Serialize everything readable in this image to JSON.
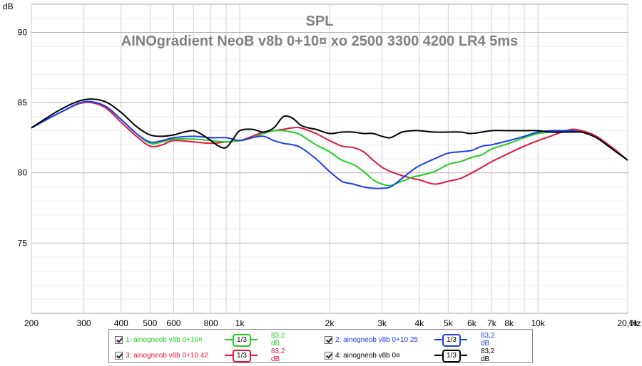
{
  "chart_data": {
    "type": "line",
    "title": "SPL",
    "subtitle": "AINOgradient NeoB v8b 0+10¤ xo 2500 3300 4200 LR4 5ms",
    "ylabel": "dB",
    "xlabel": "",
    "x_scale": "log",
    "xlim": [
      200,
      20000
    ],
    "ylim": [
      70,
      92
    ],
    "grid": true,
    "y_ticks": [
      75,
      80,
      85,
      90
    ],
    "y_tick_labels": [
      "75",
      "80",
      "85",
      "90"
    ],
    "x_ticks": [
      200,
      300,
      400,
      500,
      600,
      800,
      1000,
      2000,
      3000,
      4000,
      5000,
      6000,
      7000,
      8000,
      10000,
      20000
    ],
    "x_tick_labels": [
      "200",
      "300",
      "400",
      "500",
      "600",
      "800",
      "1k",
      "2k",
      "3k",
      "4k",
      "5k",
      "6k",
      "7k",
      "8k",
      "10k",
      "20,0k"
    ],
    "x_unit": "Hz",
    "legend_position": "bottom",
    "series": [
      {
        "name": "ainogneob v8b 0+10¤",
        "index_label": "1:",
        "color": "#22cc22",
        "smoothing": "1/3",
        "value_label": "83,2 dB",
        "x": [
          200,
          250,
          300,
          350,
          400,
          450,
          500,
          550,
          600,
          700,
          800,
          900,
          1000,
          1100,
          1200,
          1300,
          1400,
          1500,
          1600,
          1800,
          2000,
          2200,
          2400,
          2600,
          2800,
          3000,
          3200,
          3500,
          3800,
          4000,
          4500,
          5000,
          5500,
          6000,
          6500,
          7000,
          8000,
          9000,
          10000,
          11000,
          12000,
          13000,
          14000,
          15000,
          16000,
          18000,
          20000
        ],
        "values": [
          83.2,
          84.3,
          85.05,
          84.8,
          83.8,
          82.8,
          82.1,
          82.2,
          82.4,
          82.4,
          82.3,
          82.2,
          82.3,
          82.5,
          82.8,
          83.0,
          83.0,
          82.9,
          82.7,
          82.0,
          81.5,
          80.9,
          80.6,
          80.1,
          79.5,
          79.2,
          79.1,
          79.4,
          79.7,
          79.8,
          80.1,
          80.6,
          80.8,
          81.1,
          81.3,
          81.7,
          82.1,
          82.5,
          82.8,
          82.9,
          83.0,
          83.0,
          82.9,
          82.7,
          82.4,
          81.6,
          80.9
        ]
      },
      {
        "name": "ainogneob v8b 0+10 25",
        "index_label": "2:",
        "color": "#1e3cf0",
        "smoothing": "1/3",
        "value_label": "83,2 dB",
        "x": [
          200,
          250,
          300,
          350,
          400,
          450,
          500,
          550,
          600,
          700,
          800,
          900,
          1000,
          1100,
          1200,
          1300,
          1400,
          1500,
          1600,
          1800,
          2000,
          2200,
          2400,
          2600,
          2800,
          3000,
          3200,
          3500,
          3800,
          4000,
          4500,
          5000,
          5500,
          6000,
          6500,
          7000,
          8000,
          9000,
          10000,
          11000,
          12000,
          13000,
          14000,
          15000,
          16000,
          18000,
          20000
        ],
        "values": [
          83.2,
          84.3,
          85.05,
          84.8,
          83.8,
          82.8,
          82.2,
          82.3,
          82.5,
          82.6,
          82.5,
          82.5,
          82.3,
          82.5,
          82.6,
          82.3,
          82.1,
          82.0,
          81.8,
          81.0,
          80.1,
          79.4,
          79.2,
          79.0,
          78.9,
          78.9,
          79.0,
          79.6,
          80.2,
          80.5,
          81.0,
          81.4,
          81.5,
          81.6,
          81.9,
          82.0,
          82.3,
          82.6,
          82.9,
          83.0,
          83.0,
          83.0,
          82.9,
          82.7,
          82.4,
          81.6,
          80.9
        ]
      },
      {
        "name": "ainogneob v8b 0+10 42",
        "index_label": "3:",
        "color": "#e0163c",
        "smoothing": "1/3",
        "value_label": "83,2 dB",
        "x": [
          200,
          250,
          300,
          350,
          400,
          450,
          500,
          550,
          600,
          700,
          800,
          900,
          1000,
          1100,
          1200,
          1300,
          1400,
          1500,
          1600,
          1800,
          2000,
          2200,
          2400,
          2600,
          2800,
          3000,
          3200,
          3500,
          3800,
          4000,
          4500,
          5000,
          5500,
          6000,
          6500,
          7000,
          8000,
          9000,
          10000,
          11000,
          12000,
          13000,
          14000,
          15000,
          16000,
          18000,
          20000
        ],
        "values": [
          83.2,
          84.3,
          85.0,
          84.7,
          83.6,
          82.6,
          81.9,
          82.0,
          82.3,
          82.2,
          82.1,
          82.2,
          82.3,
          82.6,
          82.9,
          83.0,
          83.1,
          83.2,
          83.2,
          82.8,
          82.3,
          81.9,
          81.8,
          81.5,
          80.9,
          80.4,
          80.1,
          79.8,
          79.6,
          79.5,
          79.2,
          79.4,
          79.6,
          80.0,
          80.4,
          80.8,
          81.4,
          81.9,
          82.3,
          82.6,
          82.9,
          83.1,
          83.0,
          82.8,
          82.5,
          81.7,
          80.9
        ]
      },
      {
        "name": "ainogneob v8b 0¤",
        "index_label": "4:",
        "color": "#000000",
        "smoothing": "1/3",
        "value_label": "83,2 dB",
        "x": [
          200,
          250,
          300,
          350,
          400,
          450,
          500,
          550,
          600,
          650,
          700,
          750,
          800,
          850,
          900,
          950,
          1000,
          1100,
          1200,
          1300,
          1400,
          1500,
          1600,
          1700,
          1800,
          2000,
          2200,
          2400,
          2600,
          2800,
          3000,
          3200,
          3500,
          3800,
          4000,
          4500,
          5000,
          5500,
          6000,
          7000,
          8000,
          9000,
          10000,
          11000,
          12000,
          13000,
          14000,
          15000,
          16000,
          18000,
          20000
        ],
        "values": [
          83.2,
          84.5,
          85.2,
          85.1,
          84.3,
          83.3,
          82.7,
          82.6,
          82.7,
          82.9,
          83.0,
          82.7,
          82.3,
          81.9,
          81.8,
          82.4,
          83.0,
          83.1,
          82.9,
          83.2,
          84.0,
          83.9,
          83.4,
          83.2,
          83.1,
          82.8,
          82.9,
          82.9,
          82.8,
          82.8,
          82.6,
          82.5,
          82.9,
          83.0,
          83.0,
          82.9,
          82.9,
          82.9,
          82.8,
          83.0,
          83.0,
          83.0,
          83.0,
          82.9,
          82.9,
          82.9,
          82.9,
          82.7,
          82.4,
          81.6,
          80.9
        ]
      }
    ]
  }
}
